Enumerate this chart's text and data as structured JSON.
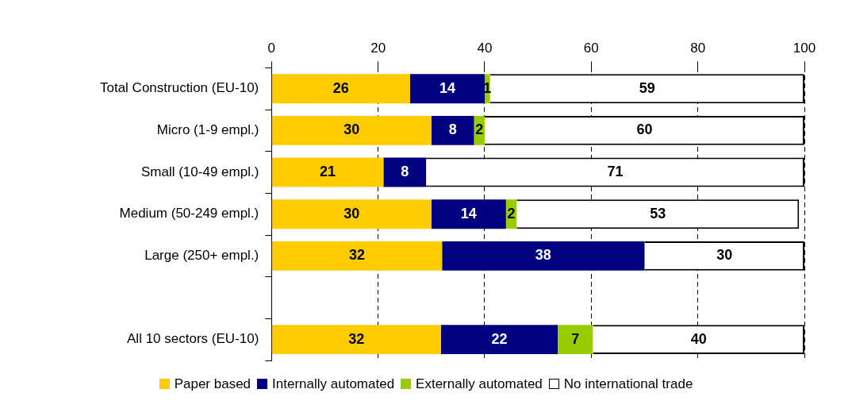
{
  "chart_data": {
    "type": "bar",
    "orientation": "horizontal",
    "stacked": true,
    "categories": [
      "Total Construction (EU-10)",
      "Micro (1-9 empl.)",
      "Small (10-49 empl.)",
      "Medium (50-249 empl.)",
      "Large (250+ empl.)",
      null,
      "All 10 sectors (EU-10)"
    ],
    "series": [
      {
        "name": "Paper based",
        "color": "#ffcc00",
        "values": [
          26,
          30,
          21,
          30,
          32,
          null,
          31.8
        ],
        "value_labels": [
          "26",
          "30",
          "21",
          "30",
          "32",
          null,
          "32"
        ]
      },
      {
        "name": "Internally automated",
        "color": "#000080",
        "values": [
          14,
          8,
          8,
          14,
          38,
          null,
          21.9
        ],
        "value_labels": [
          "14",
          "8",
          "8",
          "14",
          "38",
          null,
          "22"
        ]
      },
      {
        "name": "Externally automated",
        "color": "#99cc00",
        "values": [
          1,
          2,
          null,
          2,
          null,
          null,
          6.6
        ],
        "value_labels": [
          "1",
          "2",
          null,
          "2",
          null,
          null,
          "7"
        ]
      },
      {
        "name": "No international trade",
        "color": "#ffffff",
        "values": [
          59,
          60,
          71,
          53,
          30,
          null,
          39.7
        ],
        "value_labels": [
          "59",
          "60",
          "71",
          "53",
          "30",
          null,
          "40"
        ]
      }
    ],
    "xlim": [
      0,
      100
    ],
    "xticks": [
      0,
      20,
      40,
      60,
      80,
      100
    ],
    "grid": "x",
    "legend": "bottom"
  }
}
